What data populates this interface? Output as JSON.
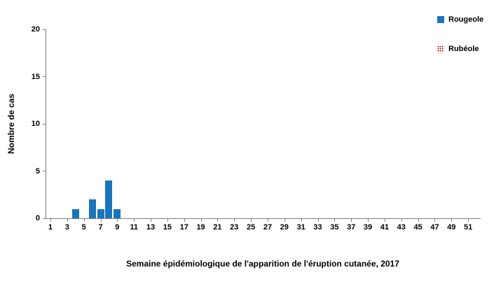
{
  "chart_data": {
    "type": "bar",
    "title": "",
    "xlabel": "Semaine épidémiologique de l'apparition de l'éruption cutanée, 2017",
    "ylabel": "Nombre de cas",
    "ylim": [
      0,
      20
    ],
    "yticks": [
      0,
      5,
      10,
      15,
      20
    ],
    "xtick_labels": [
      "1",
      "3",
      "5",
      "7",
      "9",
      "11",
      "13",
      "15",
      "17",
      "19",
      "21",
      "23",
      "25",
      "27",
      "29",
      "31",
      "33",
      "35",
      "37",
      "39",
      "41",
      "43",
      "45",
      "47",
      "49",
      "51"
    ],
    "weeks_total": 52,
    "grid": false,
    "legend_position": "top-right",
    "series": [
      {
        "name": "Rougeole",
        "color": "#1b75bc",
        "fill": "solid",
        "points": [
          {
            "week": 4,
            "value": 1
          },
          {
            "week": 6,
            "value": 2
          },
          {
            "week": 7,
            "value": 1
          },
          {
            "week": 8,
            "value": 4
          },
          {
            "week": 9,
            "value": 1
          }
        ]
      },
      {
        "name": "Rubéole",
        "color": "#b02a1c",
        "fill": "dotted-pattern",
        "points": []
      }
    ]
  }
}
